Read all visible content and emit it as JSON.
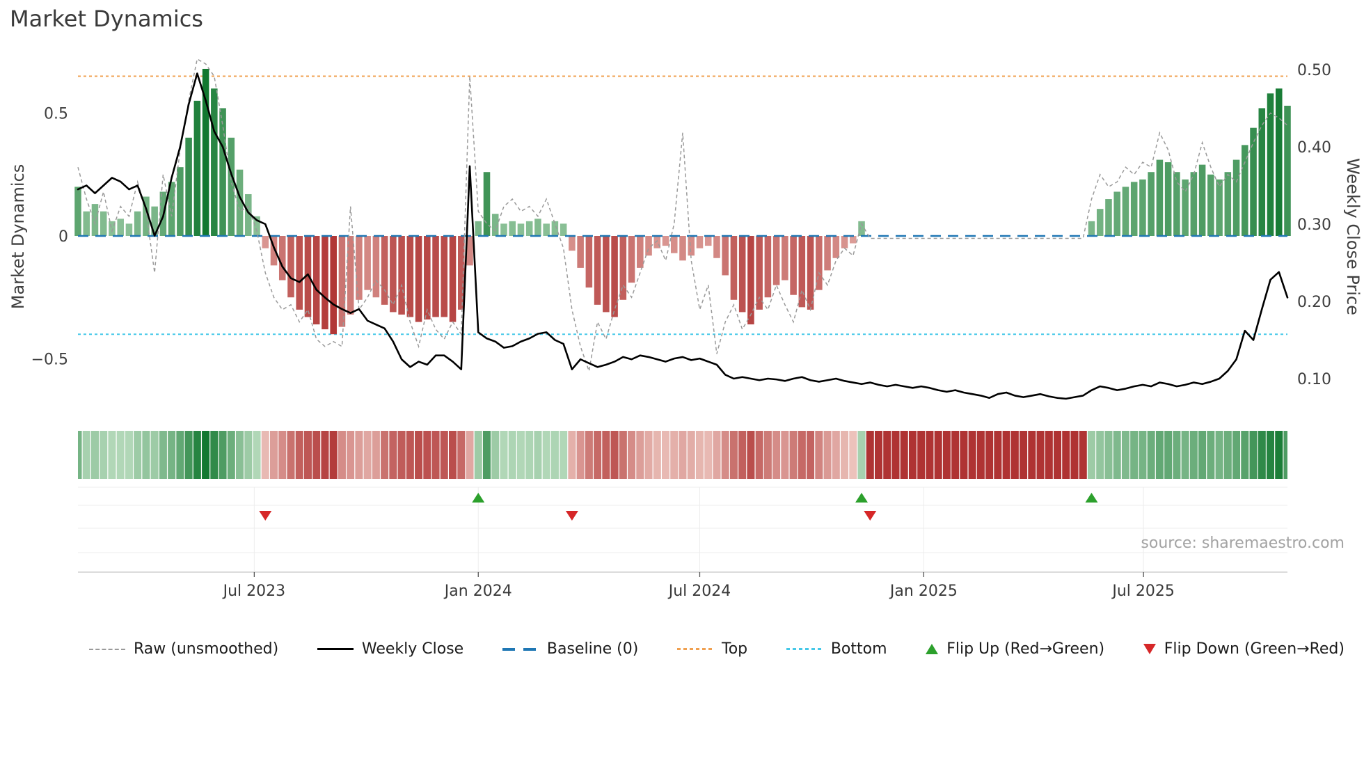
{
  "title": "Market Dynamics",
  "source": "source: sharemaestro.com",
  "legend": [
    {
      "label": "Raw (unsmoothed)"
    },
    {
      "label": "Weekly Close"
    },
    {
      "label": "Baseline (0)"
    },
    {
      "label": "Top"
    },
    {
      "label": "Bottom"
    },
    {
      "label": "Flip Up (Red→Green)"
    },
    {
      "label": "Flip Down (Green→Red)"
    }
  ],
  "colors": {
    "close": "#000000",
    "raw": "#9a9a9a",
    "baseline": "#1f77b4",
    "top": "#f0a050",
    "bottom": "#45c8e8",
    "flip_up": "#2ca02c",
    "flip_down": "#d62728",
    "green_light": "#d9efd9",
    "green_dark": "#127830",
    "red_light": "#f7ddd5",
    "red_dark": "#ab2a2a",
    "grid": "#ededed",
    "axis_line": "#cfcfcf",
    "tick_text": "#3f3f3f"
  },
  "chart_data": {
    "type": "bar+line",
    "title": "Market Dynamics",
    "start_date": "2023-02-06",
    "week_interval_days": 7,
    "n_weeks": 143,
    "x_ticks": [
      {
        "week": 20.7,
        "label": "Jul 2023"
      },
      {
        "week": 47.0,
        "label": "Jan 2024"
      },
      {
        "week": 73.0,
        "label": "Jul 2024"
      },
      {
        "week": 99.3,
        "label": "Jan 2025"
      },
      {
        "week": 125.1,
        "label": "Jul 2025"
      }
    ],
    "left_axis": {
      "label": "Market Dynamics",
      "range": [
        -0.72,
        0.72
      ],
      "ticks": [
        {
          "v": 0.5,
          "label": "0.5"
        },
        {
          "v": 0.0,
          "label": "0"
        },
        {
          "v": -0.5,
          "label": "−0.5"
        }
      ]
    },
    "right_axis": {
      "label": "Weekly Close Price",
      "range": [
        0.05,
        0.51
      ],
      "ticks": [
        {
          "v": 0.5,
          "label": "0.50"
        },
        {
          "v": 0.4,
          "label": "0.40"
        },
        {
          "v": 0.3,
          "label": "0.30"
        },
        {
          "v": 0.2,
          "label": "0.20"
        },
        {
          "v": 0.1,
          "label": "0.10"
        }
      ]
    },
    "reference_lines": {
      "baseline": 0,
      "top": 0.65,
      "bottom": -0.4
    },
    "flip_up_weeks": [
      47,
      92,
      119
    ],
    "flip_down_weeks": [
      22,
      58,
      93
    ],
    "series": [
      {
        "name": "Market Dynamics (smoothed bars)",
        "type": "bar",
        "axis": "left",
        "values": [
          0.2,
          0.1,
          0.13,
          0.1,
          0.06,
          0.07,
          0.05,
          0.1,
          0.16,
          0.12,
          0.18,
          0.22,
          0.28,
          0.4,
          0.55,
          0.68,
          0.6,
          0.52,
          0.4,
          0.27,
          0.17,
          0.08,
          -0.05,
          -0.12,
          -0.18,
          -0.25,
          -0.3,
          -0.33,
          -0.36,
          -0.38,
          -0.4,
          -0.37,
          -0.32,
          -0.26,
          -0.22,
          -0.25,
          -0.28,
          -0.31,
          -0.32,
          -0.33,
          -0.35,
          -0.34,
          -0.33,
          -0.33,
          -0.35,
          -0.3,
          -0.12,
          0.06,
          0.26,
          0.09,
          0.05,
          0.06,
          0.05,
          0.06,
          0.07,
          0.05,
          0.06,
          0.05,
          -0.06,
          -0.13,
          -0.21,
          -0.28,
          -0.31,
          -0.33,
          -0.26,
          -0.19,
          -0.13,
          -0.08,
          -0.05,
          -0.04,
          -0.07,
          -0.1,
          -0.08,
          -0.05,
          -0.04,
          -0.09,
          -0.16,
          -0.26,
          -0.31,
          -0.36,
          -0.3,
          -0.25,
          -0.2,
          -0.18,
          -0.24,
          -0.29,
          -0.3,
          -0.22,
          -0.14,
          -0.09,
          -0.05,
          -0.03,
          0.06,
          -0.005,
          -0.005,
          -0.005,
          -0.005,
          -0.005,
          -0.005,
          -0.005,
          -0.005,
          -0.005,
          -0.005,
          -0.005,
          -0.005,
          -0.005,
          -0.005,
          -0.005,
          -0.005,
          -0.005,
          -0.005,
          -0.005,
          -0.005,
          -0.005,
          -0.005,
          -0.005,
          -0.005,
          -0.005,
          -0.005,
          0.06,
          0.11,
          0.15,
          0.18,
          0.2,
          0.22,
          0.23,
          0.26,
          0.31,
          0.3,
          0.26,
          0.23,
          0.26,
          0.29,
          0.25,
          0.23,
          0.26,
          0.31,
          0.37,
          0.44,
          0.52,
          0.58,
          0.6,
          0.53
        ]
      },
      {
        "name": "Raw (unsmoothed)",
        "type": "line",
        "axis": "left",
        "values": [
          0.28,
          0.15,
          0.05,
          0.18,
          0.02,
          0.12,
          0.08,
          0.22,
          0.1,
          -0.15,
          0.25,
          0.08,
          0.35,
          0.55,
          0.72,
          0.7,
          0.65,
          0.45,
          0.22,
          0.1,
          0.12,
          0.02,
          -0.15,
          -0.25,
          -0.3,
          -0.28,
          -0.35,
          -0.3,
          -0.42,
          -0.45,
          -0.43,
          -0.45,
          0.12,
          -0.3,
          -0.25,
          -0.18,
          -0.22,
          -0.28,
          -0.2,
          -0.35,
          -0.45,
          -0.3,
          -0.38,
          -0.42,
          -0.35,
          -0.4,
          0.65,
          0.1,
          0.05,
          0.02,
          0.12,
          0.15,
          0.1,
          0.12,
          0.08,
          0.15,
          0.05,
          -0.05,
          -0.3,
          -0.45,
          -0.55,
          -0.35,
          -0.42,
          -0.3,
          -0.2,
          -0.25,
          -0.15,
          -0.05,
          -0.02,
          -0.1,
          0.05,
          0.42,
          -0.1,
          -0.3,
          -0.2,
          -0.48,
          -0.35,
          -0.28,
          -0.38,
          -0.32,
          -0.25,
          -0.3,
          -0.2,
          -0.28,
          -0.35,
          -0.22,
          -0.3,
          -0.15,
          -0.2,
          -0.1,
          -0.05,
          -0.08,
          0.05,
          -0.01,
          -0.01,
          -0.01,
          -0.01,
          -0.01,
          -0.01,
          -0.01,
          -0.01,
          -0.01,
          -0.01,
          -0.01,
          -0.01,
          -0.01,
          -0.01,
          -0.01,
          -0.01,
          -0.01,
          -0.01,
          -0.01,
          -0.01,
          -0.01,
          -0.01,
          -0.01,
          -0.01,
          -0.01,
          -0.01,
          0.15,
          0.25,
          0.2,
          0.22,
          0.28,
          0.25,
          0.3,
          0.28,
          0.42,
          0.35,
          0.22,
          0.18,
          0.25,
          0.38,
          0.28,
          0.2,
          0.25,
          0.22,
          0.3,
          0.38,
          0.45,
          0.5,
          0.48,
          0.45
        ]
      },
      {
        "name": "Weekly Close",
        "type": "line",
        "axis": "right",
        "values": [
          0.345,
          0.35,
          0.34,
          0.35,
          0.36,
          0.355,
          0.345,
          0.35,
          0.32,
          0.285,
          0.31,
          0.36,
          0.4,
          0.455,
          0.495,
          0.46,
          0.42,
          0.4,
          0.365,
          0.335,
          0.315,
          0.305,
          0.3,
          0.27,
          0.245,
          0.23,
          0.225,
          0.235,
          0.215,
          0.205,
          0.196,
          0.19,
          0.185,
          0.19,
          0.175,
          0.17,
          0.165,
          0.148,
          0.125,
          0.115,
          0.122,
          0.118,
          0.13,
          0.13,
          0.122,
          0.112,
          0.375,
          0.16,
          0.152,
          0.148,
          0.14,
          0.142,
          0.148,
          0.152,
          0.158,
          0.16,
          0.15,
          0.145,
          0.112,
          0.125,
          0.12,
          0.115,
          0.118,
          0.122,
          0.128,
          0.125,
          0.13,
          0.128,
          0.125,
          0.122,
          0.126,
          0.128,
          0.124,
          0.126,
          0.122,
          0.118,
          0.105,
          0.1,
          0.102,
          0.1,
          0.098,
          0.1,
          0.099,
          0.097,
          0.1,
          0.102,
          0.098,
          0.096,
          0.098,
          0.1,
          0.097,
          0.095,
          0.093,
          0.095,
          0.092,
          0.09,
          0.092,
          0.09,
          0.088,
          0.09,
          0.088,
          0.085,
          0.083,
          0.085,
          0.082,
          0.08,
          0.078,
          0.075,
          0.08,
          0.082,
          0.078,
          0.076,
          0.078,
          0.08,
          0.077,
          0.075,
          0.074,
          0.076,
          0.078,
          0.085,
          0.09,
          0.088,
          0.085,
          0.087,
          0.09,
          0.092,
          0.09,
          0.095,
          0.093,
          0.09,
          0.092,
          0.095,
          0.093,
          0.096,
          0.1,
          0.11,
          0.125,
          0.162,
          0.15,
          0.19,
          0.228,
          0.238,
          0.205
        ]
      },
      {
        "name": "Regime heat strip",
        "type": "heatmap",
        "values": [
          0.5,
          0.25,
          0.3,
          0.25,
          0.2,
          0.2,
          0.2,
          0.3,
          0.35,
          0.3,
          0.45,
          0.5,
          0.6,
          0.75,
          0.9,
          1.0,
          0.85,
          0.7,
          0.55,
          0.4,
          0.3,
          0.2,
          -0.2,
          -0.35,
          -0.45,
          -0.6,
          -0.7,
          -0.75,
          -0.8,
          -0.85,
          -0.9,
          -0.45,
          -0.4,
          -0.35,
          -0.3,
          -0.35,
          -0.6,
          -0.68,
          -0.72,
          -0.75,
          -0.8,
          -0.78,
          -0.75,
          -0.75,
          -0.8,
          -0.65,
          -0.3,
          0.3,
          0.7,
          0.3,
          0.2,
          0.22,
          0.2,
          0.22,
          0.25,
          0.2,
          0.22,
          0.2,
          -0.25,
          -0.4,
          -0.55,
          -0.65,
          -0.7,
          -0.75,
          -0.6,
          -0.45,
          -0.35,
          -0.28,
          -0.22,
          -0.2,
          -0.25,
          -0.3,
          -0.27,
          -0.22,
          -0.2,
          -0.3,
          -0.45,
          -0.6,
          -0.7,
          -0.8,
          -0.65,
          -0.55,
          -0.45,
          -0.4,
          -0.55,
          -0.65,
          -0.68,
          -0.5,
          -0.38,
          -0.3,
          -0.22,
          -0.15,
          0.25,
          -0.95,
          -0.95,
          -0.95,
          -0.95,
          -0.95,
          -0.95,
          -0.95,
          -0.95,
          -0.95,
          -0.95,
          -0.95,
          -0.95,
          -0.95,
          -0.95,
          -0.95,
          -0.95,
          -0.95,
          -0.95,
          -0.95,
          -0.95,
          -0.95,
          -0.95,
          -0.95,
          -0.95,
          -0.95,
          -0.95,
          0.3,
          0.35,
          0.4,
          0.45,
          0.45,
          0.5,
          0.5,
          0.55,
          0.6,
          0.6,
          0.55,
          0.5,
          0.55,
          0.6,
          0.55,
          0.5,
          0.55,
          0.6,
          0.65,
          0.75,
          0.85,
          0.9,
          0.95,
          0.7
        ]
      }
    ]
  }
}
